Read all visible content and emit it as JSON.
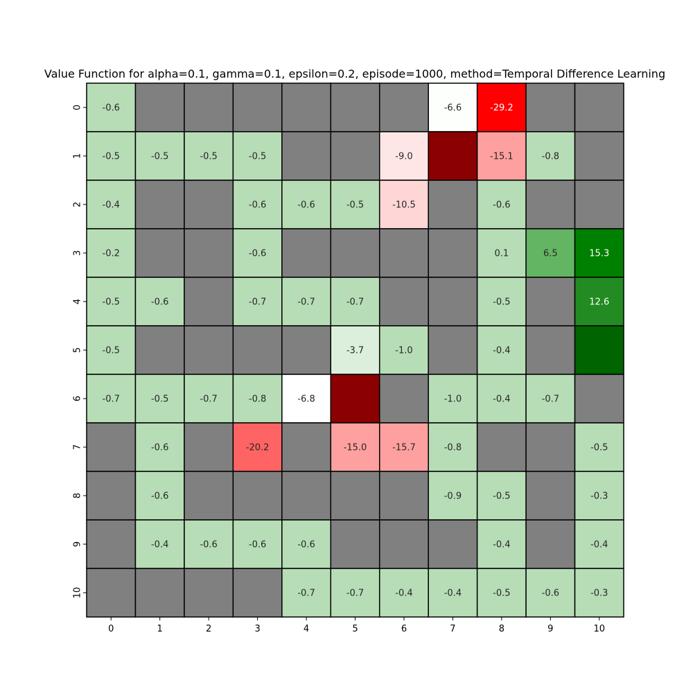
{
  "chart_data": {
    "type": "heatmap",
    "title": "Value Function for alpha=0.1, gamma=0.1, epsilon=0.2, episode=1000, method=Temporal Difference Learning",
    "xlabel": "",
    "ylabel": "",
    "x_ticks": [
      "0",
      "1",
      "2",
      "3",
      "4",
      "5",
      "6",
      "7",
      "8",
      "9",
      "10"
    ],
    "y_ticks": [
      "0",
      "1",
      "2",
      "3",
      "4",
      "5",
      "6",
      "7",
      "8",
      "9",
      "10"
    ],
    "legend": "none",
    "colors": {
      "wall": "#808080",
      "mild_negative": "#b7ddb7",
      "light_green": "#dcefdc",
      "medium_green": "#63b463",
      "green": "#008000",
      "forest_green": "#228b22",
      "dark_green": "#006400",
      "white": "#ffffff",
      "near_white": "#fcfffc",
      "pale_pink": "#ffe6e6",
      "light_pink": "#ffd6d6",
      "pink": "#ffa0a0",
      "salmon": "#ff6464",
      "red": "#ff0000",
      "dark_red": "#8b0000"
    },
    "cells": [
      {
        "row": 0,
        "col": 0,
        "label": "-0.6",
        "color": "#b7ddb7"
      },
      {
        "row": 0,
        "col": 1,
        "label": "",
        "color": "#808080"
      },
      {
        "row": 0,
        "col": 2,
        "label": "",
        "color": "#808080"
      },
      {
        "row": 0,
        "col": 3,
        "label": "",
        "color": "#808080"
      },
      {
        "row": 0,
        "col": 4,
        "label": "",
        "color": "#808080"
      },
      {
        "row": 0,
        "col": 5,
        "label": "",
        "color": "#808080"
      },
      {
        "row": 0,
        "col": 6,
        "label": "",
        "color": "#808080"
      },
      {
        "row": 0,
        "col": 7,
        "label": "-6.6",
        "color": "#fcfffc"
      },
      {
        "row": 0,
        "col": 8,
        "label": "-29.2",
        "color": "#ff0000"
      },
      {
        "row": 0,
        "col": 9,
        "label": "",
        "color": "#808080"
      },
      {
        "row": 0,
        "col": 10,
        "label": "",
        "color": "#808080"
      },
      {
        "row": 1,
        "col": 0,
        "label": "-0.5",
        "color": "#b7ddb7"
      },
      {
        "row": 1,
        "col": 1,
        "label": "-0.5",
        "color": "#b7ddb7"
      },
      {
        "row": 1,
        "col": 2,
        "label": "-0.5",
        "color": "#b7ddb7"
      },
      {
        "row": 1,
        "col": 3,
        "label": "-0.5",
        "color": "#b7ddb7"
      },
      {
        "row": 1,
        "col": 4,
        "label": "",
        "color": "#808080"
      },
      {
        "row": 1,
        "col": 5,
        "label": "",
        "color": "#808080"
      },
      {
        "row": 1,
        "col": 6,
        "label": "-9.0",
        "color": "#ffe6e6"
      },
      {
        "row": 1,
        "col": 7,
        "label": "",
        "color": "#8b0000"
      },
      {
        "row": 1,
        "col": 8,
        "label": "-15.1",
        "color": "#ffa0a0"
      },
      {
        "row": 1,
        "col": 9,
        "label": "-0.8",
        "color": "#b7ddb7"
      },
      {
        "row": 1,
        "col": 10,
        "label": "",
        "color": "#808080"
      },
      {
        "row": 2,
        "col": 0,
        "label": "-0.4",
        "color": "#b7ddb7"
      },
      {
        "row": 2,
        "col": 1,
        "label": "",
        "color": "#808080"
      },
      {
        "row": 2,
        "col": 2,
        "label": "",
        "color": "#808080"
      },
      {
        "row": 2,
        "col": 3,
        "label": "-0.6",
        "color": "#b7ddb7"
      },
      {
        "row": 2,
        "col": 4,
        "label": "-0.6",
        "color": "#b7ddb7"
      },
      {
        "row": 2,
        "col": 5,
        "label": "-0.5",
        "color": "#b7ddb7"
      },
      {
        "row": 2,
        "col": 6,
        "label": "-10.5",
        "color": "#ffd6d6"
      },
      {
        "row": 2,
        "col": 7,
        "label": "",
        "color": "#808080"
      },
      {
        "row": 2,
        "col": 8,
        "label": "-0.6",
        "color": "#b7ddb7"
      },
      {
        "row": 2,
        "col": 9,
        "label": "",
        "color": "#808080"
      },
      {
        "row": 2,
        "col": 10,
        "label": "",
        "color": "#808080"
      },
      {
        "row": 3,
        "col": 0,
        "label": "-0.2",
        "color": "#b7ddb7"
      },
      {
        "row": 3,
        "col": 1,
        "label": "",
        "color": "#808080"
      },
      {
        "row": 3,
        "col": 2,
        "label": "",
        "color": "#808080"
      },
      {
        "row": 3,
        "col": 3,
        "label": "-0.6",
        "color": "#b7ddb7"
      },
      {
        "row": 3,
        "col": 4,
        "label": "",
        "color": "#808080"
      },
      {
        "row": 3,
        "col": 5,
        "label": "",
        "color": "#808080"
      },
      {
        "row": 3,
        "col": 6,
        "label": "",
        "color": "#808080"
      },
      {
        "row": 3,
        "col": 7,
        "label": "",
        "color": "#808080"
      },
      {
        "row": 3,
        "col": 8,
        "label": "0.1",
        "color": "#b7ddb7"
      },
      {
        "row": 3,
        "col": 9,
        "label": "6.5",
        "color": "#63b463"
      },
      {
        "row": 3,
        "col": 10,
        "label": "15.3",
        "color": "#008000"
      },
      {
        "row": 4,
        "col": 0,
        "label": "-0.5",
        "color": "#b7ddb7"
      },
      {
        "row": 4,
        "col": 1,
        "label": "-0.6",
        "color": "#b7ddb7"
      },
      {
        "row": 4,
        "col": 2,
        "label": "",
        "color": "#808080"
      },
      {
        "row": 4,
        "col": 3,
        "label": "-0.7",
        "color": "#b7ddb7"
      },
      {
        "row": 4,
        "col": 4,
        "label": "-0.7",
        "color": "#b7ddb7"
      },
      {
        "row": 4,
        "col": 5,
        "label": "-0.7",
        "color": "#b7ddb7"
      },
      {
        "row": 4,
        "col": 6,
        "label": "",
        "color": "#808080"
      },
      {
        "row": 4,
        "col": 7,
        "label": "",
        "color": "#808080"
      },
      {
        "row": 4,
        "col": 8,
        "label": "-0.5",
        "color": "#b7ddb7"
      },
      {
        "row": 4,
        "col": 9,
        "label": "",
        "color": "#808080"
      },
      {
        "row": 4,
        "col": 10,
        "label": "12.6",
        "color": "#228b22"
      },
      {
        "row": 5,
        "col": 0,
        "label": "-0.5",
        "color": "#b7ddb7"
      },
      {
        "row": 5,
        "col": 1,
        "label": "",
        "color": "#808080"
      },
      {
        "row": 5,
        "col": 2,
        "label": "",
        "color": "#808080"
      },
      {
        "row": 5,
        "col": 3,
        "label": "",
        "color": "#808080"
      },
      {
        "row": 5,
        "col": 4,
        "label": "",
        "color": "#808080"
      },
      {
        "row": 5,
        "col": 5,
        "label": "-3.7",
        "color": "#dcefdc"
      },
      {
        "row": 5,
        "col": 6,
        "label": "-1.0",
        "color": "#b7ddb7"
      },
      {
        "row": 5,
        "col": 7,
        "label": "",
        "color": "#808080"
      },
      {
        "row": 5,
        "col": 8,
        "label": "-0.4",
        "color": "#b7ddb7"
      },
      {
        "row": 5,
        "col": 9,
        "label": "",
        "color": "#808080"
      },
      {
        "row": 5,
        "col": 10,
        "label": "",
        "color": "#006400"
      },
      {
        "row": 6,
        "col": 0,
        "label": "-0.7",
        "color": "#b7ddb7"
      },
      {
        "row": 6,
        "col": 1,
        "label": "-0.5",
        "color": "#b7ddb7"
      },
      {
        "row": 6,
        "col": 2,
        "label": "-0.7",
        "color": "#b7ddb7"
      },
      {
        "row": 6,
        "col": 3,
        "label": "-0.8",
        "color": "#b7ddb7"
      },
      {
        "row": 6,
        "col": 4,
        "label": "-6.8",
        "color": "#ffffff"
      },
      {
        "row": 6,
        "col": 5,
        "label": "",
        "color": "#8b0000"
      },
      {
        "row": 6,
        "col": 6,
        "label": "",
        "color": "#808080"
      },
      {
        "row": 6,
        "col": 7,
        "label": "-1.0",
        "color": "#b7ddb7"
      },
      {
        "row": 6,
        "col": 8,
        "label": "-0.4",
        "color": "#b7ddb7"
      },
      {
        "row": 6,
        "col": 9,
        "label": "-0.7",
        "color": "#b7ddb7"
      },
      {
        "row": 6,
        "col": 10,
        "label": "",
        "color": "#808080"
      },
      {
        "row": 7,
        "col": 0,
        "label": "",
        "color": "#808080"
      },
      {
        "row": 7,
        "col": 1,
        "label": "-0.6",
        "color": "#b7ddb7"
      },
      {
        "row": 7,
        "col": 2,
        "label": "",
        "color": "#808080"
      },
      {
        "row": 7,
        "col": 3,
        "label": "-20.2",
        "color": "#ff6464"
      },
      {
        "row": 7,
        "col": 4,
        "label": "",
        "color": "#808080"
      },
      {
        "row": 7,
        "col": 5,
        "label": "-15.0",
        "color": "#ffa0a0"
      },
      {
        "row": 7,
        "col": 6,
        "label": "-15.7",
        "color": "#ffa0a0"
      },
      {
        "row": 7,
        "col": 7,
        "label": "-0.8",
        "color": "#b7ddb7"
      },
      {
        "row": 7,
        "col": 8,
        "label": "",
        "color": "#808080"
      },
      {
        "row": 7,
        "col": 9,
        "label": "",
        "color": "#808080"
      },
      {
        "row": 7,
        "col": 10,
        "label": "-0.5",
        "color": "#b7ddb7"
      },
      {
        "row": 8,
        "col": 0,
        "label": "",
        "color": "#808080"
      },
      {
        "row": 8,
        "col": 1,
        "label": "-0.6",
        "color": "#b7ddb7"
      },
      {
        "row": 8,
        "col": 2,
        "label": "",
        "color": "#808080"
      },
      {
        "row": 8,
        "col": 3,
        "label": "",
        "color": "#808080"
      },
      {
        "row": 8,
        "col": 4,
        "label": "",
        "color": "#808080"
      },
      {
        "row": 8,
        "col": 5,
        "label": "",
        "color": "#808080"
      },
      {
        "row": 8,
        "col": 6,
        "label": "",
        "color": "#808080"
      },
      {
        "row": 8,
        "col": 7,
        "label": "-0.9",
        "color": "#b7ddb7"
      },
      {
        "row": 8,
        "col": 8,
        "label": "-0.5",
        "color": "#b7ddb7"
      },
      {
        "row": 8,
        "col": 9,
        "label": "",
        "color": "#808080"
      },
      {
        "row": 8,
        "col": 10,
        "label": "-0.3",
        "color": "#b7ddb7"
      },
      {
        "row": 9,
        "col": 0,
        "label": "",
        "color": "#808080"
      },
      {
        "row": 9,
        "col": 1,
        "label": "-0.4",
        "color": "#b7ddb7"
      },
      {
        "row": 9,
        "col": 2,
        "label": "-0.6",
        "color": "#b7ddb7"
      },
      {
        "row": 9,
        "col": 3,
        "label": "-0.6",
        "color": "#b7ddb7"
      },
      {
        "row": 9,
        "col": 4,
        "label": "-0.6",
        "color": "#b7ddb7"
      },
      {
        "row": 9,
        "col": 5,
        "label": "",
        "color": "#808080"
      },
      {
        "row": 9,
        "col": 6,
        "label": "",
        "color": "#808080"
      },
      {
        "row": 9,
        "col": 7,
        "label": "",
        "color": "#808080"
      },
      {
        "row": 9,
        "col": 8,
        "label": "-0.4",
        "color": "#b7ddb7"
      },
      {
        "row": 9,
        "col": 9,
        "label": "",
        "color": "#808080"
      },
      {
        "row": 9,
        "col": 10,
        "label": "-0.4",
        "color": "#b7ddb7"
      },
      {
        "row": 10,
        "col": 0,
        "label": "",
        "color": "#808080"
      },
      {
        "row": 10,
        "col": 1,
        "label": "",
        "color": "#808080"
      },
      {
        "row": 10,
        "col": 2,
        "label": "",
        "color": "#808080"
      },
      {
        "row": 10,
        "col": 3,
        "label": "",
        "color": "#808080"
      },
      {
        "row": 10,
        "col": 4,
        "label": "-0.7",
        "color": "#b7ddb7"
      },
      {
        "row": 10,
        "col": 5,
        "label": "-0.7",
        "color": "#b7ddb7"
      },
      {
        "row": 10,
        "col": 6,
        "label": "-0.4",
        "color": "#b7ddb7"
      },
      {
        "row": 10,
        "col": 7,
        "label": "-0.4",
        "color": "#b7ddb7"
      },
      {
        "row": 10,
        "col": 8,
        "label": "-0.5",
        "color": "#b7ddb7"
      },
      {
        "row": 10,
        "col": 9,
        "label": "-0.6",
        "color": "#b7ddb7"
      },
      {
        "row": 10,
        "col": 10,
        "label": "-0.3",
        "color": "#b7ddb7"
      }
    ]
  }
}
